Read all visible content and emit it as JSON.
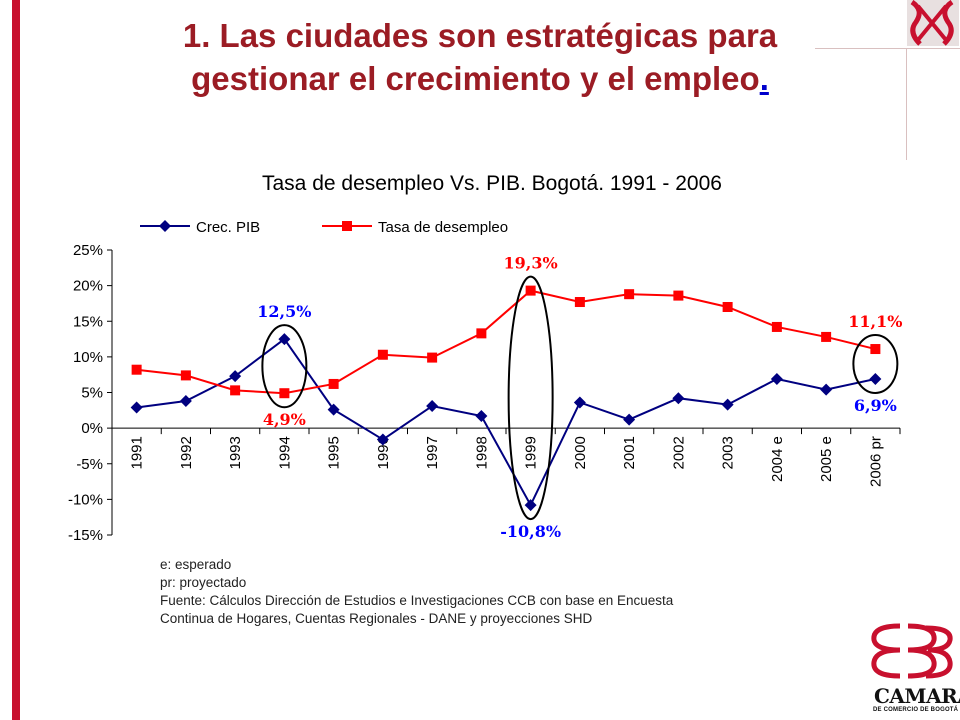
{
  "slide": {
    "title_line1": "1. Las ciudades son estratégicas para",
    "title_line2": "gestionar el crecimiento y el empleo",
    "title_dot": "."
  },
  "colors": {
    "accent": "#c8102e",
    "title": "#9b1c24",
    "series_pib": "#000080",
    "series_desempleo": "#ff0000"
  },
  "chart_data": {
    "type": "line",
    "title": "Tasa de desempleo Vs. PIB. Bogotá. 1991 - 2006",
    "xlabel": "",
    "ylabel": "",
    "categories": [
      "1991",
      "1992",
      "1993",
      "1994",
      "1995",
      "1996",
      "1997",
      "1998",
      "1999",
      "2000",
      "2001",
      "2002",
      "2003",
      "2004 e",
      "2005 e",
      "2006 pr"
    ],
    "ylim": [
      -15,
      25
    ],
    "yticks": [
      "25%",
      "20%",
      "15%",
      "10%",
      "5%",
      "0%",
      "-5%",
      "-10%",
      "-15%"
    ],
    "ytick_values": [
      25,
      20,
      15,
      10,
      5,
      0,
      -5,
      -10,
      -15
    ],
    "grid": false,
    "legend_position": "top-left",
    "series": [
      {
        "name": "Crec. PIB",
        "marker": "diamond",
        "color": "#000080",
        "values": [
          2.9,
          3.8,
          7.3,
          12.5,
          2.6,
          -1.6,
          3.1,
          1.7,
          -10.8,
          3.6,
          1.2,
          4.2,
          3.3,
          6.9,
          5.4,
          6.9
        ]
      },
      {
        "name": "Tasa de desempleo",
        "marker": "square",
        "color": "#ff0000",
        "values": [
          8.2,
          7.4,
          5.3,
          4.9,
          6.2,
          10.3,
          9.9,
          13.3,
          19.3,
          17.7,
          18.8,
          18.6,
          17.0,
          14.2,
          12.8,
          11.1
        ]
      }
    ],
    "annotations": [
      {
        "text": "12,5%",
        "series": 0,
        "index": 3,
        "color": "#0000ff",
        "place": "above"
      },
      {
        "text": "4,9%",
        "series": 1,
        "index": 3,
        "color": "#ff0000",
        "place": "below"
      },
      {
        "text": "19,3%",
        "series": 1,
        "index": 8,
        "color": "#ff0000",
        "place": "above"
      },
      {
        "text": "-10,8%",
        "series": 0,
        "index": 8,
        "color": "#0000ff",
        "place": "below"
      },
      {
        "text": "11,1%",
        "series": 1,
        "index": 15,
        "color": "#ff0000",
        "place": "above"
      },
      {
        "text": "6,9%",
        "series": 0,
        "index": 15,
        "color": "#0000ff",
        "place": "below"
      }
    ]
  },
  "footnotes": [
    "e: esperado",
    "pr: proyectado",
    "Fuente: Cálculos Dirección de Estudios e Investigaciones CCB con base en Encuesta",
    "Continua de Hogares, Cuentas Regionales - DANE y proyecciones SHD"
  ],
  "logo": {
    "name": "CAMARA",
    "subtitle": "DE COMERCIO DE BOGOTÁ"
  }
}
